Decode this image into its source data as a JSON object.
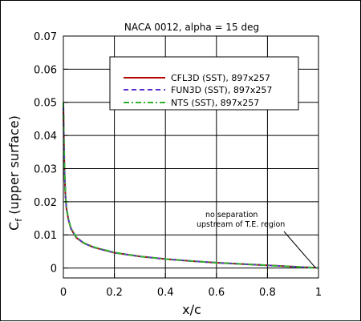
{
  "chart_data": {
    "type": "line",
    "title": "NACA 0012, alpha = 15 deg",
    "xlabel": "x/c",
    "ylabel_main": "C",
    "ylabel_sub": "f",
    "ylabel_rest": " (upper surface)",
    "xlim": [
      0,
      1
    ],
    "ylim": [
      -0.003,
      0.07
    ],
    "x_ticks": [
      0,
      0.2,
      0.4,
      0.6,
      0.8,
      1
    ],
    "x_tick_labels": [
      "0",
      "0.2",
      "0.4",
      "0.6",
      "0.8",
      "1"
    ],
    "y_ticks": [
      0,
      0.01,
      0.02,
      0.03,
      0.04,
      0.05,
      0.06,
      0.07
    ],
    "y_tick_labels": [
      "0",
      "0.01",
      "0.02",
      "0.03",
      "0.04",
      "0.05",
      "0.06",
      "0.07"
    ],
    "grid": true,
    "legend_position": "top-right",
    "series": [
      {
        "name": "CFL3D (SST), 897x257",
        "color": "#b00000",
        "dash": "solid",
        "x": [
          0,
          0.002,
          0.005,
          0.008,
          0.012,
          0.02,
          0.03,
          0.05,
          0.08,
          0.12,
          0.2,
          0.3,
          0.4,
          0.5,
          0.6,
          0.7,
          0.8,
          0.9,
          0.95,
          0.99,
          1.0
        ],
        "y": [
          0.049,
          0.038,
          0.028,
          0.022,
          0.018,
          0.0145,
          0.0118,
          0.0092,
          0.0075,
          0.0062,
          0.0046,
          0.0035,
          0.0027,
          0.0021,
          0.0016,
          0.0012,
          0.0008,
          0.0004,
          0.0002,
          0.0001,
          0.0
        ]
      },
      {
        "name": "FUN3D (SST), 897x257",
        "color": "#5a2fd0",
        "dash": "dashed",
        "x": [
          0,
          0.002,
          0.005,
          0.008,
          0.012,
          0.02,
          0.03,
          0.05,
          0.08,
          0.12,
          0.2,
          0.3,
          0.4,
          0.5,
          0.6,
          0.7,
          0.8,
          0.9,
          0.95,
          0.99,
          1.0
        ],
        "y": [
          0.049,
          0.038,
          0.0281,
          0.0221,
          0.0181,
          0.0146,
          0.0119,
          0.0093,
          0.0075,
          0.0062,
          0.0046,
          0.0035,
          0.0027,
          0.0021,
          0.0016,
          0.0012,
          0.0008,
          0.0004,
          0.0002,
          0.0001,
          0.0
        ]
      },
      {
        "name": "NTS (SST), 897x257",
        "color": "#30b030",
        "dash": "dashdot",
        "x": [
          0,
          0.002,
          0.005,
          0.008,
          0.012,
          0.02,
          0.03,
          0.05,
          0.08,
          0.12,
          0.2,
          0.3,
          0.4,
          0.5,
          0.6,
          0.7,
          0.8,
          0.9,
          0.95,
          0.99,
          1.0
        ],
        "y": [
          0.05,
          0.039,
          0.029,
          0.0225,
          0.0183,
          0.0147,
          0.012,
          0.0094,
          0.0076,
          0.0063,
          0.0047,
          0.0035,
          0.0027,
          0.0021,
          0.0016,
          0.0012,
          0.0008,
          0.0004,
          0.0002,
          0.0,
          0.0
        ]
      }
    ],
    "annotation": {
      "line1": "no separation",
      "line2": "upstream of T.E. region"
    }
  }
}
